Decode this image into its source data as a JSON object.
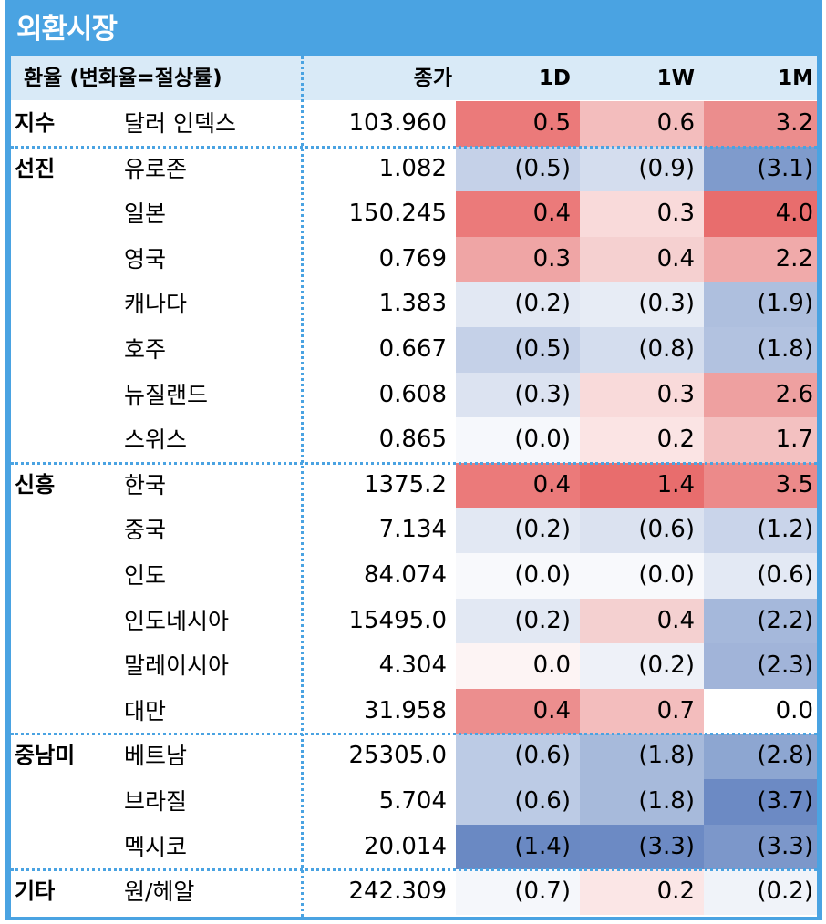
{
  "title": "외환시장",
  "header": {
    "label": "환율 (변화율=절상률)",
    "close": "종가",
    "d1": "1D",
    "w1": "1W",
    "m1": "1M"
  },
  "rows": [
    {
      "group": "지수",
      "name": "달러 인덱스",
      "close": "103.960",
      "d1": "0.5",
      "w1": "0.6",
      "m1": "3.2",
      "c": [
        "#eb7a7a",
        "#f3bdbd",
        "#eb8d8d"
      ]
    },
    {
      "group": "선진",
      "name": "유로존",
      "close": "1.082",
      "d1": "(0.5)",
      "w1": "(0.9)",
      "m1": "(3.1)",
      "c": [
        "#c5d1e8",
        "#d4ddee",
        "#7f9bcc"
      ]
    },
    {
      "group": "",
      "name": "일본",
      "close": "150.245",
      "d1": "0.4",
      "w1": "0.3",
      "m1": "4.0",
      "c": [
        "#eb7a7a",
        "#f9dada",
        "#e86d6d"
      ]
    },
    {
      "group": "",
      "name": "영국",
      "close": "0.769",
      "d1": "0.3",
      "w1": "0.4",
      "m1": "2.2",
      "c": [
        "#efa5a5",
        "#f5d0d0",
        "#f0aaaa"
      ]
    },
    {
      "group": "",
      "name": "캐나다",
      "close": "1.383",
      "d1": "(0.2)",
      "w1": "(0.3)",
      "m1": "(1.9)",
      "c": [
        "#e2e8f3",
        "#e7ecf5",
        "#aebfde"
      ]
    },
    {
      "group": "",
      "name": "호주",
      "close": "0.667",
      "d1": "(0.5)",
      "w1": "(0.8)",
      "m1": "(1.8)",
      "c": [
        "#c5d1e8",
        "#d4ddee",
        "#b2c2e0"
      ]
    },
    {
      "group": "",
      "name": "뉴질랜드",
      "close": "0.608",
      "d1": "(0.3)",
      "w1": "0.3",
      "m1": "2.6",
      "c": [
        "#dce3f1",
        "#f9dada",
        "#eea0a0"
      ]
    },
    {
      "group": "",
      "name": "스위스",
      "close": "0.865",
      "d1": "(0.0)",
      "w1": "0.2",
      "m1": "1.7",
      "c": [
        "#f6f8fc",
        "#fbe4e4",
        "#f3c1c1"
      ]
    },
    {
      "group": "신흥",
      "name": "한국",
      "close": "1375.2",
      "d1": "0.4",
      "w1": "1.4",
      "m1": "3.5",
      "c": [
        "#eb7a7a",
        "#e86d6d",
        "#ec8a8a"
      ]
    },
    {
      "group": "",
      "name": "중국",
      "close": "7.134",
      "d1": "(0.2)",
      "w1": "(0.6)",
      "m1": "(1.2)",
      "c": [
        "#e2e8f3",
        "#dbe2f0",
        "#c9d4ea"
      ]
    },
    {
      "group": "",
      "name": "인도",
      "close": "84.074",
      "d1": "(0.0)",
      "w1": "(0.0)",
      "m1": "(0.6)",
      "c": [
        "#f8f9fc",
        "#f8f9fc",
        "#e3e9f4"
      ]
    },
    {
      "group": "",
      "name": "인도네시아",
      "close": "15495.0",
      "d1": "(0.2)",
      "w1": "0.4",
      "m1": "(2.2)",
      "c": [
        "#e2e8f3",
        "#f4d0d0",
        "#a5b8db"
      ]
    },
    {
      "group": "",
      "name": "말레이시아",
      "close": "4.304",
      "d1": "0.0",
      "w1": "(0.2)",
      "m1": "(2.3)",
      "c": [
        "#fdf4f4",
        "#eef1f8",
        "#a1b4d9"
      ]
    },
    {
      "group": "",
      "name": "대만",
      "close": "31.958",
      "d1": "0.4",
      "w1": "0.7",
      "m1": "0.0",
      "c": [
        "#ec8e8e",
        "#f3bdbd",
        "#ffffff"
      ]
    },
    {
      "group": "중남미",
      "name": "베트남",
      "close": "25305.0",
      "d1": "(0.6)",
      "w1": "(1.8)",
      "m1": "(2.8)",
      "c": [
        "#bccbe5",
        "#a7badb",
        "#8da6d1"
      ]
    },
    {
      "group": "",
      "name": "브라질",
      "close": "5.704",
      "d1": "(0.6)",
      "w1": "(1.8)",
      "m1": "(3.7)",
      "c": [
        "#bccbe5",
        "#a7badb",
        "#6c8ac4"
      ]
    },
    {
      "group": "",
      "name": "멕시코",
      "close": "20.014",
      "d1": "(1.4)",
      "w1": "(3.3)",
      "m1": "(3.3)",
      "c": [
        "#6a89c3",
        "#6c8ac4",
        "#7c97ca"
      ]
    },
    {
      "group": "기타",
      "name": "원/헤알",
      "close": "242.309",
      "d1": "(0.7)",
      "w1": "0.2",
      "m1": "(0.2)",
      "c": [
        "#f5f7fb",
        "#fbe6e6",
        "#f0f3f9"
      ]
    }
  ]
}
